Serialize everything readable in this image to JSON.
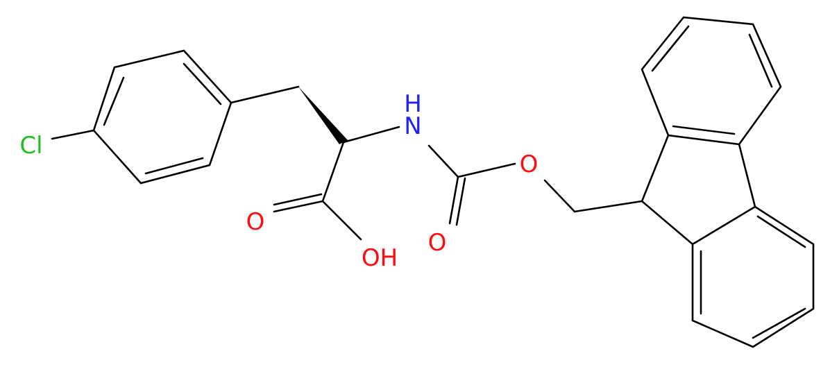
{
  "atoms": [
    {
      "label": "Cl"
    },
    {
      "label": "H"
    },
    {
      "label": "N"
    },
    {
      "label": "O"
    },
    {
      "label": "O"
    },
    {
      "label": "O"
    },
    {
      "label": "OH"
    }
  ]
}
